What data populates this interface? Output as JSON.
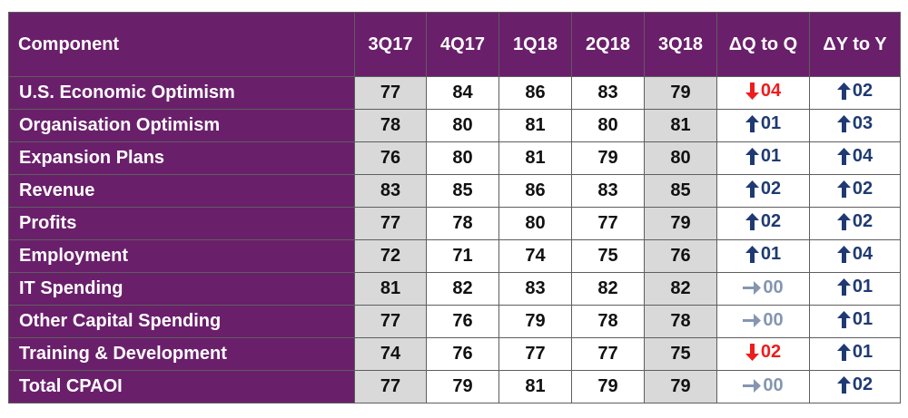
{
  "chart_data": {
    "type": "table",
    "columns": [
      "Component",
      "3Q17",
      "4Q17",
      "1Q18",
      "2Q18",
      "3Q18",
      "ΔQ to Q",
      "ΔY to Y"
    ],
    "rows": [
      {
        "component": "U.S. Economic Optimism",
        "values": [
          "77",
          "84",
          "86",
          "83",
          "79"
        ],
        "dq": {
          "dir": "down",
          "text": "04"
        },
        "dy": {
          "dir": "up",
          "text": "02"
        }
      },
      {
        "component": "Organisation Optimism",
        "values": [
          "78",
          "80",
          "81",
          "80",
          "81"
        ],
        "dq": {
          "dir": "up",
          "text": "01"
        },
        "dy": {
          "dir": "up",
          "text": "03"
        }
      },
      {
        "component": "Expansion Plans",
        "values": [
          "76",
          "80",
          "81",
          "79",
          "80"
        ],
        "dq": {
          "dir": "up",
          "text": "01"
        },
        "dy": {
          "dir": "up",
          "text": "04"
        }
      },
      {
        "component": "Revenue",
        "values": [
          "83",
          "85",
          "86",
          "83",
          "85"
        ],
        "dq": {
          "dir": "up",
          "text": "02"
        },
        "dy": {
          "dir": "up",
          "text": "02"
        }
      },
      {
        "component": "Profits",
        "values": [
          "77",
          "78",
          "80",
          "77",
          "79"
        ],
        "dq": {
          "dir": "up",
          "text": "02"
        },
        "dy": {
          "dir": "up",
          "text": "02"
        }
      },
      {
        "component": "Employment",
        "values": [
          "72",
          "71",
          "74",
          "75",
          "76"
        ],
        "dq": {
          "dir": "up",
          "text": "01"
        },
        "dy": {
          "dir": "up",
          "text": "04"
        }
      },
      {
        "component": "IT Spending",
        "values": [
          "81",
          "82",
          "83",
          "82",
          "82"
        ],
        "dq": {
          "dir": "flat",
          "text": "00"
        },
        "dy": {
          "dir": "up",
          "text": "01"
        }
      },
      {
        "component": "Other Capital Spending",
        "values": [
          "77",
          "76",
          "79",
          "78",
          "78"
        ],
        "dq": {
          "dir": "flat",
          "text": "00"
        },
        "dy": {
          "dir": "up",
          "text": "01"
        }
      },
      {
        "component": "Training & Development",
        "values": [
          "74",
          "76",
          "77",
          "77",
          "75"
        ],
        "dq": {
          "dir": "down",
          "text": "02"
        },
        "dy": {
          "dir": "up",
          "text": "01"
        }
      },
      {
        "component": "Total CPAOI",
        "values": [
          "77",
          "79",
          "81",
          "79",
          "79"
        ],
        "dq": {
          "dir": "flat",
          "text": "00"
        },
        "dy": {
          "dir": "up",
          "text": "02"
        }
      }
    ],
    "highlighted_columns": [
      "3Q17",
      "3Q18"
    ],
    "colors": {
      "header_bg": "#6a1f6b",
      "header_text": "#ffffff",
      "highlight_cell": "#d9d9d9",
      "up": "#1f3a73",
      "down": "#ee1c1c",
      "flat": "#8496b0"
    }
  }
}
